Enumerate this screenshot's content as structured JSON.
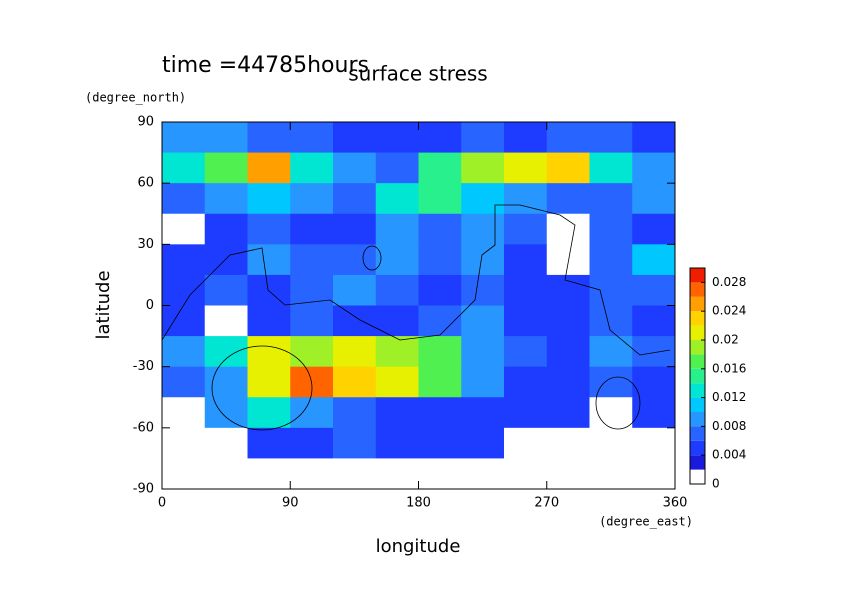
{
  "chart_data": {
    "type": "contour",
    "annotation": "time =44785hours",
    "title": "surface stress",
    "y_unit": "(degree_north)",
    "x_unit": "(degree_east)",
    "xlabel": "longitude",
    "ylabel": "latitude",
    "xlim": [
      0,
      360
    ],
    "ylim": [
      -90,
      90
    ],
    "xticks": [
      0,
      90,
      180,
      270,
      360
    ],
    "yticks": [
      -90,
      -60,
      -30,
      0,
      30,
      60,
      90
    ],
    "lon": [
      15,
      45,
      75,
      105,
      135,
      165,
      195,
      225,
      255,
      285,
      315,
      345
    ],
    "lat": [
      82.5,
      67.5,
      52.5,
      37.5,
      22.5,
      7.5,
      -7.5,
      -22.5,
      -37.5,
      -52.5,
      -67.5,
      -82.5
    ],
    "z": [
      [
        0.008,
        0.008,
        0.006,
        0.006,
        0.004,
        0.004,
        0.004,
        0.006,
        0.004,
        0.006,
        0.006,
        0.004
      ],
      [
        0.012,
        0.016,
        0.024,
        0.012,
        0.008,
        0.006,
        0.014,
        0.018,
        0.02,
        0.022,
        0.012,
        0.008
      ],
      [
        0.006,
        0.008,
        0.01,
        0.008,
        0.006,
        0.012,
        0.014,
        0.01,
        0.008,
        0.006,
        0.006,
        0.008
      ],
      [
        0.001,
        0.004,
        0.006,
        0.004,
        0.004,
        0.008,
        0.006,
        0.008,
        0.006,
        0.001,
        0.006,
        0.004
      ],
      [
        0.004,
        0.004,
        0.008,
        0.006,
        0.006,
        0.008,
        0.006,
        0.008,
        0.004,
        0.001,
        0.006,
        0.01
      ],
      [
        0.004,
        0.006,
        0.004,
        0.006,
        0.008,
        0.006,
        0.004,
        0.006,
        0.004,
        0.004,
        0.006,
        0.006
      ],
      [
        0.004,
        0.001,
        0.004,
        0.006,
        0.004,
        0.004,
        0.006,
        0.008,
        0.004,
        0.004,
        0.006,
        0.004
      ],
      [
        0.008,
        0.012,
        0.02,
        0.018,
        0.02,
        0.018,
        0.016,
        0.008,
        0.006,
        0.004,
        0.008,
        0.006
      ],
      [
        0.006,
        0.008,
        0.02,
        0.026,
        0.022,
        0.02,
        0.016,
        0.008,
        0.004,
        0.004,
        0.006,
        0.004
      ],
      [
        0.001,
        0.008,
        0.012,
        0.008,
        0.006,
        0.004,
        0.004,
        0.004,
        0.004,
        0.004,
        0.001,
        0.004
      ],
      [
        0.001,
        0.001,
        0.004,
        0.004,
        0.006,
        0.004,
        0.004,
        0.004,
        0.001,
        0.001,
        0.001,
        0.001
      ],
      [
        0,
        0,
        0,
        0,
        0,
        0,
        0,
        0,
        0,
        0,
        0,
        0
      ]
    ],
    "levels": [
      0,
      0.002,
      0.004,
      0.006,
      0.008,
      0.01,
      0.012,
      0.014,
      0.016,
      0.018,
      0.02,
      0.022,
      0.024,
      0.026,
      0.028,
      0.03
    ],
    "colors": [
      "#ffffff",
      "#1a1adc",
      "#1e3cff",
      "#2864ff",
      "#2896ff",
      "#00c8ff",
      "#00e6d2",
      "#28f08c",
      "#50f050",
      "#a0f028",
      "#e6f000",
      "#ffd200",
      "#ffa000",
      "#ff6400",
      "#f01e00"
    ],
    "cticks": [
      0,
      0.004,
      0.008,
      0.012,
      0.016,
      0.02,
      0.024,
      0.028
    ]
  }
}
